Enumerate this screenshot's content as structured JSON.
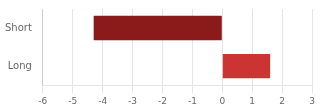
{
  "chart_data": {
    "type": "bar",
    "orientation": "horizontal",
    "categories": [
      "Short",
      "Long"
    ],
    "values": [
      -4.3,
      1.6
    ],
    "colors": [
      "#8B1A1A",
      "#CC3333"
    ],
    "xlim": [
      -6,
      3
    ],
    "xticks": [
      -6,
      -5,
      -4,
      -3,
      -2,
      -1,
      0,
      1,
      2,
      3
    ],
    "grid": true
  }
}
